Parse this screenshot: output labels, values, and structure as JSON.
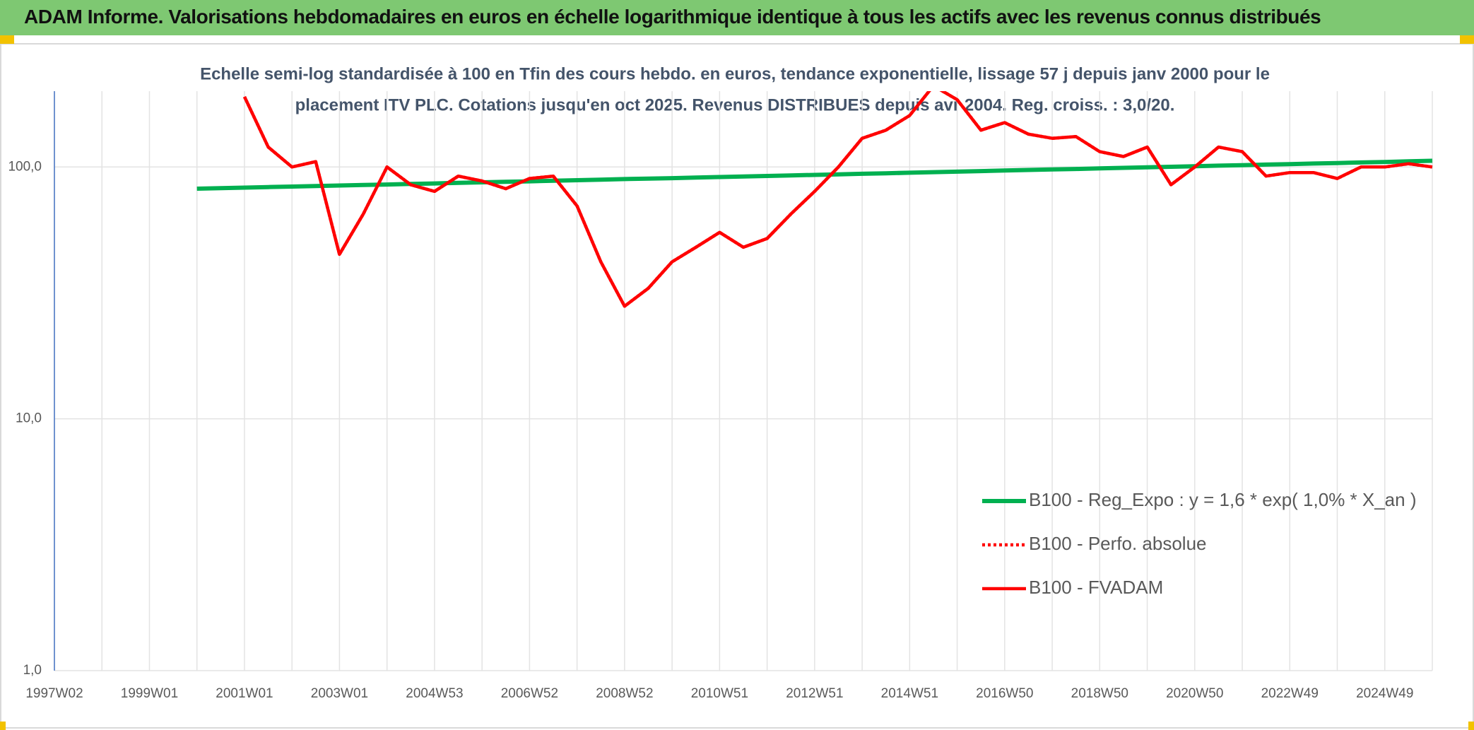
{
  "chart_data": {
    "type": "line",
    "title": "ADAM Informe. Valorisations hebdomadaires en euros en échelle logarithmique identique à tous les actifs avec les revenus connus distribués",
    "subtitle": [
      "Echelle semi-log standardisée à 100 en Tfin des cours hebdo. en euros, tendance exponentielle, lissage 57 j depuis janv 2000 pour le",
      "placement ITV PLC. Cotations jusqu'en oct 2025. Revenus DISTRIBUES depuis avr 2004. Reg. croiss. : 3,0/20."
    ],
    "categories": [
      "1997W02",
      null,
      null,
      null,
      "1999W01",
      null,
      null,
      null,
      "2001W01",
      null,
      null,
      null,
      "2003W01",
      null,
      null,
      null,
      "2004W53",
      null,
      null,
      null,
      "2006W52",
      null,
      null,
      null,
      "2008W52",
      null,
      null,
      null,
      "2010W51",
      null,
      null,
      null,
      "2012W51",
      null,
      null,
      null,
      "2014W51",
      null,
      null,
      null,
      "2016W50",
      null,
      null,
      null,
      "2018W50",
      null,
      null,
      null,
      "2020W50",
      null,
      null,
      null,
      "2022W49",
      null,
      null,
      null,
      "2024W49",
      null,
      null
    ],
    "series": [
      {
        "name": "B100 - Reg_Expo : y = 1,6 * exp( 1,0% *  X_an )",
        "color": "#00b050",
        "style": "solid",
        "values": [
          null,
          null,
          null,
          null,
          null,
          null,
          82.0,
          82.4,
          82.8,
          83.2,
          83.6,
          84.0,
          84.4,
          84.8,
          85.2,
          85.6,
          86.0,
          86.5,
          86.9,
          87.3,
          87.7,
          88.2,
          88.6,
          89.0,
          89.5,
          89.9,
          90.3,
          90.8,
          91.2,
          91.7,
          92.1,
          92.6,
          93.0,
          93.5,
          94.0,
          94.4,
          94.9,
          95.4,
          95.8,
          96.3,
          96.8,
          97.3,
          97.8,
          98.2,
          98.7,
          99.2,
          99.7,
          100.2,
          100.7,
          101.2,
          101.7,
          102.2,
          102.7,
          103.2,
          103.7,
          104.2,
          104.7,
          105.3,
          105.8
        ]
      },
      {
        "name": "B100 - Perfo. absolue",
        "color": "#ff0000",
        "style": "dotted",
        "values": [
          null,
          null,
          null,
          null,
          null,
          null,
          null,
          null,
          190,
          120,
          100,
          105,
          45,
          65,
          100,
          85,
          80,
          92,
          88,
          82,
          90,
          92,
          70,
          42,
          28,
          33,
          42,
          48,
          55,
          48,
          52,
          65,
          80,
          100,
          130,
          140,
          160,
          210,
          185,
          140,
          150,
          135,
          130,
          132,
          115,
          110,
          120,
          85,
          100,
          120,
          115,
          92,
          95,
          95,
          90,
          100,
          100,
          103,
          100
        ]
      },
      {
        "name": "B100 - FVADAM",
        "color": "#ff0000",
        "style": "solid",
        "values": [
          null,
          null,
          null,
          null,
          null,
          null,
          null,
          null,
          190,
          120,
          100,
          105,
          45,
          65,
          100,
          85,
          80,
          92,
          88,
          82,
          90,
          92,
          70,
          42,
          28,
          33,
          42,
          48,
          55,
          48,
          52,
          65,
          80,
          100,
          130,
          140,
          160,
          210,
          185,
          140,
          150,
          135,
          130,
          132,
          115,
          110,
          120,
          85,
          100,
          120,
          115,
          92,
          95,
          95,
          90,
          100,
          100,
          103,
          100
        ]
      }
    ],
    "ylim": [
      1,
      200
    ],
    "yticks": [
      {
        "value": 1,
        "label": "1,0"
      },
      {
        "value": 10,
        "label": "10,0"
      },
      {
        "value": 100,
        "label": "100,0"
      }
    ],
    "ylog": true,
    "grid": true,
    "legend": "right"
  }
}
